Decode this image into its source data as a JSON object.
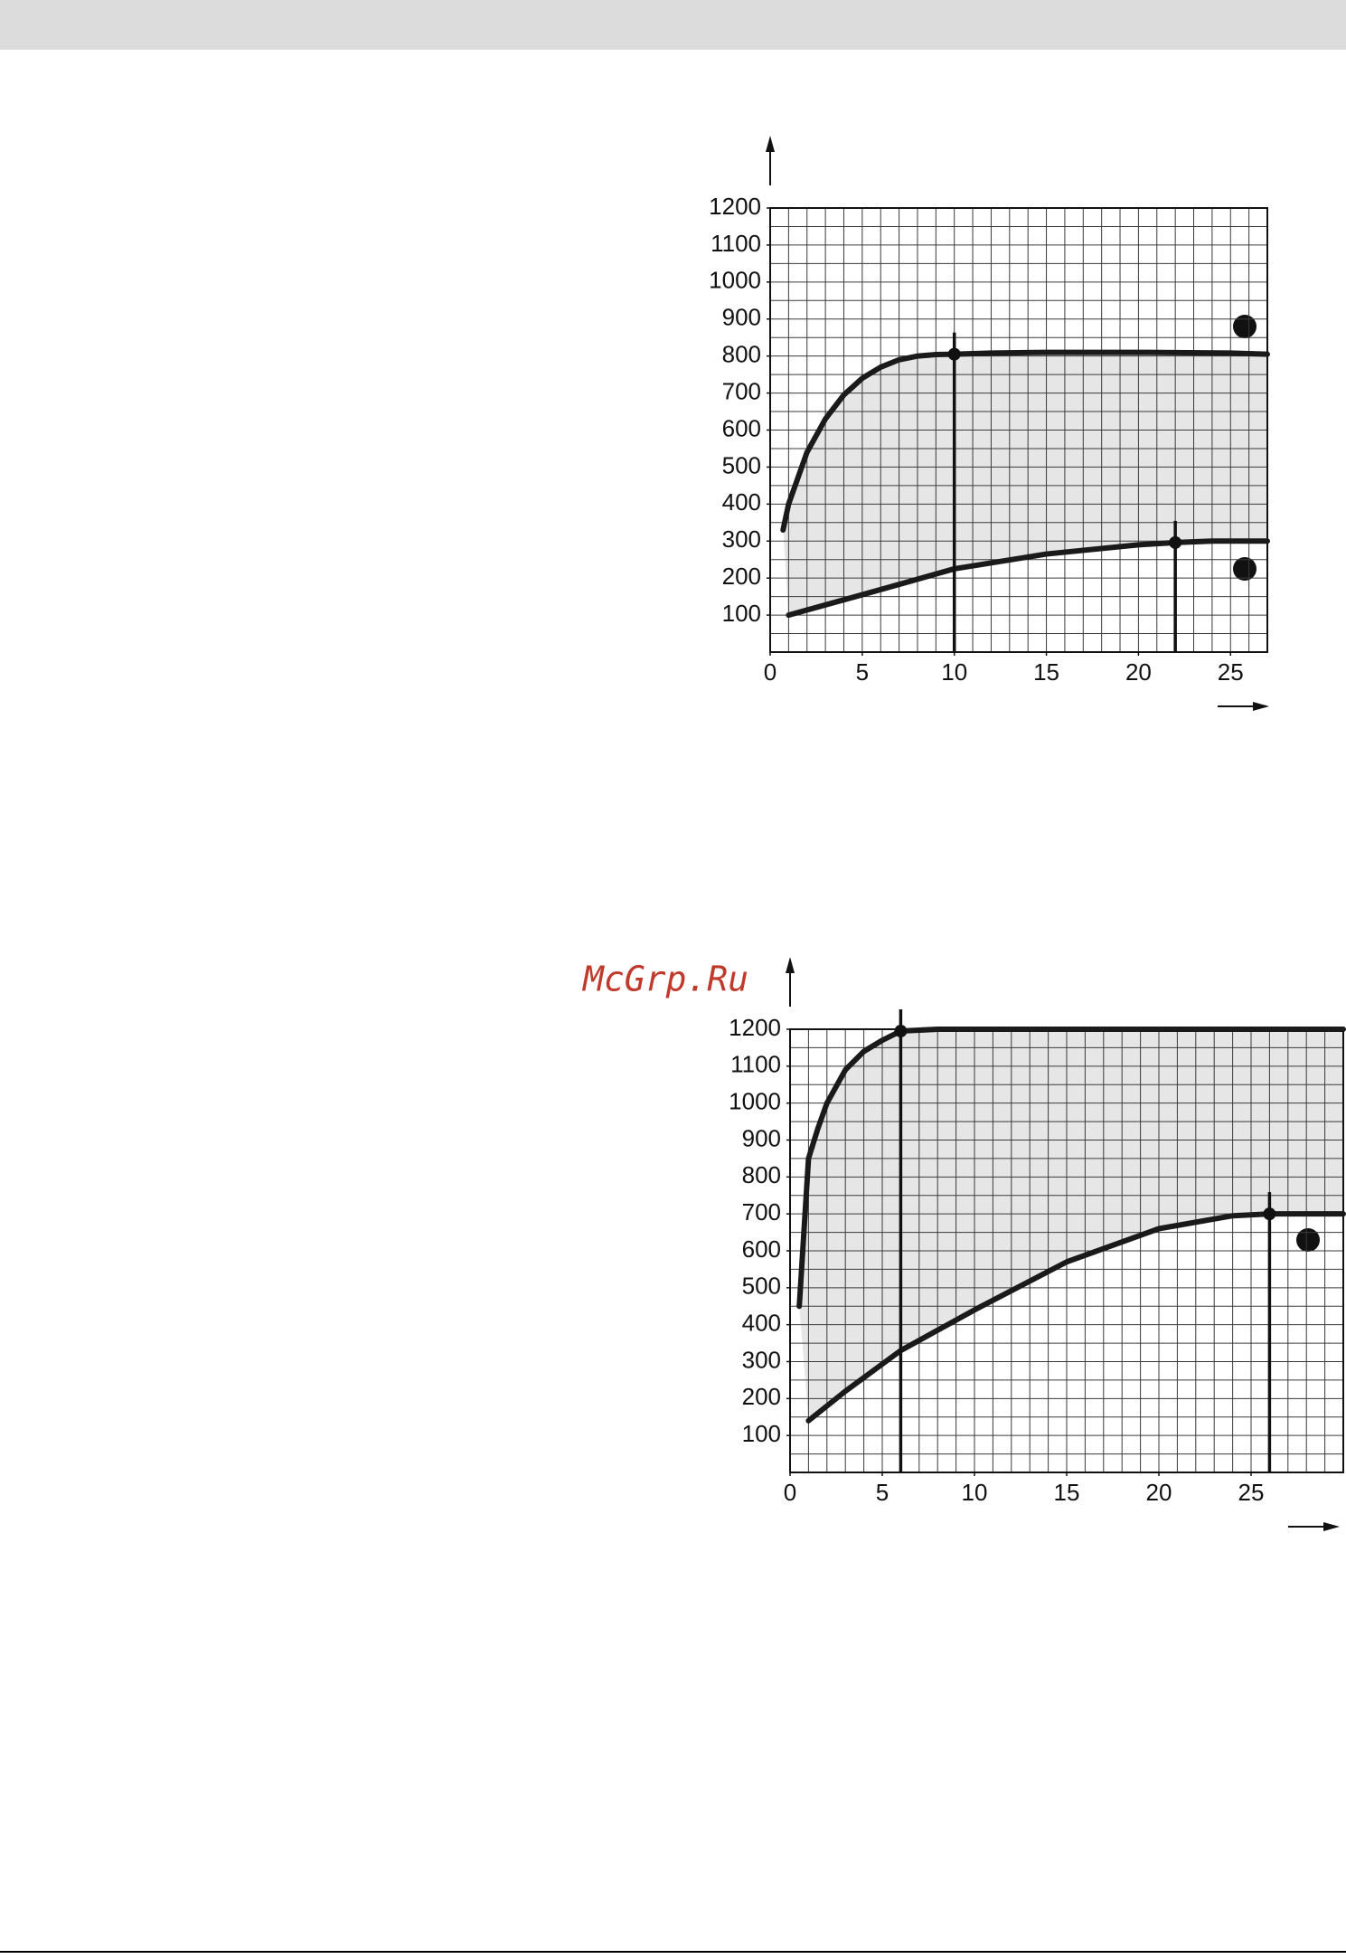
{
  "watermark": "McGrp.Ru",
  "chart_data": [
    {
      "type": "line",
      "xlim": [
        0,
        27
      ],
      "ylim": [
        0,
        1200
      ],
      "xticks": [
        0,
        5,
        10,
        15,
        20,
        25
      ],
      "yticks": [
        100,
        200,
        300,
        400,
        500,
        600,
        700,
        800,
        900,
        1000,
        1100,
        1200
      ],
      "grid": true,
      "grid_step": [
        1,
        50
      ],
      "fill_between": true,
      "series": [
        {
          "color": "#1a1a1a",
          "x": [
            0.7,
            1,
            2,
            3,
            4,
            5,
            6,
            7,
            8,
            9,
            10,
            12,
            15,
            20,
            25,
            27
          ],
          "values": [
            330,
            400,
            540,
            630,
            695,
            740,
            770,
            790,
            800,
            804,
            805,
            808,
            810,
            810,
            808,
            805
          ]
        },
        {
          "color": "#1a1a1a",
          "x": [
            1,
            5,
            10,
            15,
            20,
            22,
            24,
            27
          ],
          "values": [
            100,
            155,
            225,
            265,
            290,
            296,
            300,
            300
          ]
        }
      ],
      "points": [
        {
          "x": 10,
          "y": 805
        },
        {
          "x": 22,
          "y": 296
        }
      ]
    },
    {
      "type": "line",
      "xlim": [
        0,
        30
      ],
      "ylim": [
        0,
        1200
      ],
      "xticks": [
        0,
        5,
        10,
        15,
        20,
        25
      ],
      "yticks": [
        100,
        200,
        300,
        400,
        500,
        600,
        700,
        800,
        900,
        1000,
        1100,
        1200
      ],
      "grid": true,
      "grid_step": [
        1,
        50
      ],
      "fill_between": true,
      "series": [
        {
          "color": "#1a1a1a",
          "x": [
            0.5,
            1,
            1.5,
            2,
            3,
            4,
            5,
            6,
            8,
            30
          ],
          "values": [
            450,
            850,
            930,
            1000,
            1090,
            1140,
            1170,
            1195,
            1200,
            1200
          ]
        },
        {
          "color": "#1a1a1a",
          "x": [
            1,
            3,
            6,
            10,
            15,
            20,
            24,
            26,
            30
          ],
          "values": [
            140,
            220,
            330,
            440,
            570,
            660,
            695,
            700,
            700
          ]
        }
      ],
      "points": [
        {
          "x": 6,
          "y": 1195
        },
        {
          "x": 26,
          "y": 700
        }
      ]
    }
  ]
}
